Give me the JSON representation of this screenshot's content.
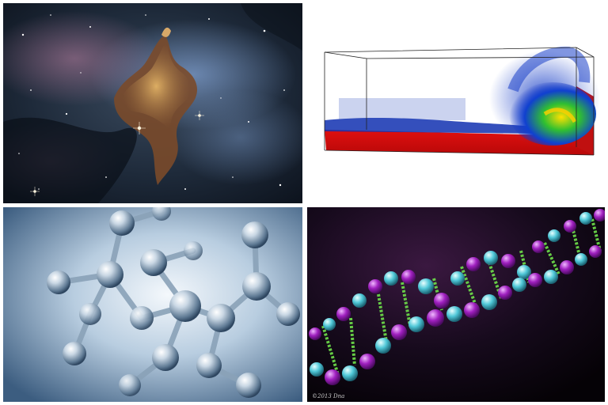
{
  "dna_credit": "©2013 Dna"
}
